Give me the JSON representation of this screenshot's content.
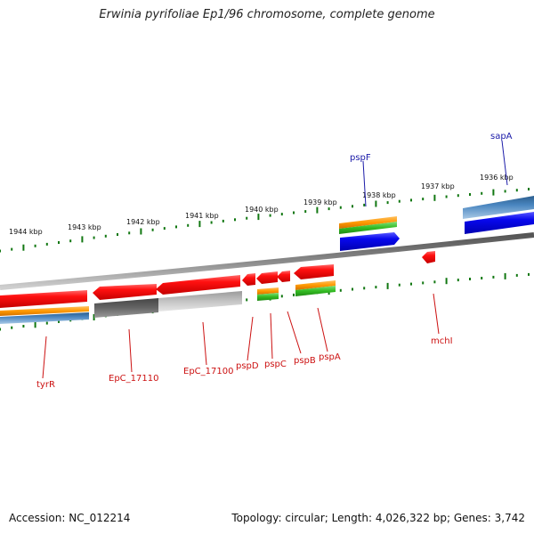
{
  "title": "Erwinia pyrifoliae Ep1/96 chromosome, complete genome",
  "footer": {
    "accession": "Accession: NC_012214",
    "topology": "Topology: circular; Length: 4,026,322 bp; Genes: 3,742"
  },
  "scale_labels": [
    "1944 kbp",
    "1943 kbp",
    "1942 kbp",
    "1941 kbp",
    "1940 kbp",
    "1939 kbp",
    "1938 kbp",
    "1937 kbp",
    "1936 kbp"
  ],
  "gene_labels": {
    "pspF": "pspF",
    "sapA": "sapA",
    "mchI": "mchI",
    "tyrR": "tyrR",
    "EpC_17110": "EpC_17110",
    "EpC_17100": "EpC_17100",
    "pspD": "pspD",
    "pspC": "pspC",
    "pspB": "pspB",
    "pspA": "pspA"
  },
  "colors": {
    "forward_label": "#1a1aa8",
    "reverse_label": "#cc1111",
    "gene_cds": "#ff1010",
    "gene_forward": "#0808ee",
    "track_orange": "#ff9900",
    "track_green": "#33bb22",
    "track_steel": "#4a86c0",
    "track_dark": "#666666",
    "track_light": "#bbbbbb",
    "backbone": "#888888",
    "tick": "#117711"
  }
}
